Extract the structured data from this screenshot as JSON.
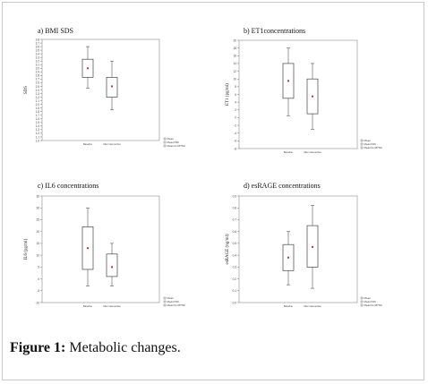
{
  "caption": {
    "label": "Figure 1:",
    "text": "Metabolic changes."
  },
  "chart_data": [
    {
      "type": "box",
      "title": "a) BMI SDS",
      "ylabel": "SDS",
      "ylim": [
        1.0,
        3.8
      ],
      "yticks": [
        1.0,
        1.1,
        1.2,
        1.3,
        1.4,
        1.5,
        1.6,
        1.7,
        1.8,
        1.9,
        2.0,
        2.1,
        2.2,
        2.3,
        2.4,
        2.5,
        2.6,
        2.7,
        2.8,
        2.9,
        3.0,
        3.1,
        3.2,
        3.3,
        3.4,
        3.5,
        3.6,
        3.7,
        3.8
      ],
      "categories": [
        "Baseline",
        "After intervention"
      ],
      "boxes": [
        {
          "mean": 3.0,
          "box_low": 2.75,
          "box_high": 3.25,
          "whisker_low": 2.45,
          "whisker_high": 3.6
        },
        {
          "mean": 2.5,
          "box_low": 2.2,
          "box_high": 2.75,
          "whisker_low": 1.85,
          "whisker_high": 3.2
        }
      ],
      "legend": [
        "Mean",
        "Mean±SD",
        "Mean±1.96*SD"
      ]
    },
    {
      "type": "box",
      "title": "b) ET1concentrations",
      "ylabel": "ET1 (pg/ml)",
      "ylim": [
        -8,
        20
      ],
      "yticks": [
        -8,
        -6,
        -4,
        -2,
        0,
        2,
        4,
        6,
        8,
        10,
        12,
        14,
        16,
        18,
        20
      ],
      "categories": [
        "Baseline",
        "After intervention"
      ],
      "boxes": [
        {
          "mean": 9.5,
          "box_low": 5.0,
          "box_high": 14.0,
          "whisker_low": 0.5,
          "whisker_high": 18.0
        },
        {
          "mean": 5.5,
          "box_low": 1.0,
          "box_high": 10.0,
          "whisker_low": -3.0,
          "whisker_high": 14.0
        }
      ],
      "legend": [
        "Mean",
        "Mean±SD",
        "Mean±1.96*SD"
      ]
    },
    {
      "type": "box",
      "title": "c) IL6 concentrations",
      "ylabel": "IL6 (pg/ml)",
      "ylim": [
        -10,
        35
      ],
      "yticks": [
        -10,
        -5,
        0,
        5,
        10,
        15,
        20,
        25,
        30,
        35
      ],
      "categories": [
        "Baseline",
        "After intervention"
      ],
      "boxes": [
        {
          "mean": 13.0,
          "box_low": 4.0,
          "box_high": 22.0,
          "whisker_low": -3.0,
          "whisker_high": 30.0
        },
        {
          "mean": 5.0,
          "box_low": 1.0,
          "box_high": 10.5,
          "whisker_low": -3.0,
          "whisker_high": 15.0
        }
      ],
      "legend": [
        "Mean",
        "Mean±SD",
        "Mean±1.96*SD"
      ]
    },
    {
      "type": "box",
      "title": "d) esRAGE concentrations",
      "ylabel": "esRAGE (ng/ml)",
      "ylim": [
        0.0,
        0.9
      ],
      "yticks": [
        0.0,
        0.1,
        0.2,
        0.3,
        0.4,
        0.5,
        0.6,
        0.7,
        0.8,
        0.9
      ],
      "categories": [
        "Baseline",
        "After intervention"
      ],
      "boxes": [
        {
          "mean": 0.38,
          "box_low": 0.27,
          "box_high": 0.49,
          "whisker_low": 0.15,
          "whisker_high": 0.6
        },
        {
          "mean": 0.47,
          "box_low": 0.3,
          "box_high": 0.65,
          "whisker_low": 0.12,
          "whisker_high": 0.82
        }
      ],
      "legend": [
        "Mean",
        "Mean±SD",
        "Mean±1.96*SD"
      ]
    }
  ]
}
